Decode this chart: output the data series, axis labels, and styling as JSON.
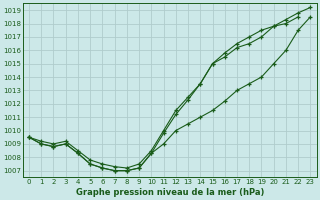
{
  "title": "Graphe pression niveau de la mer (hPa)",
  "background_color": "#cce8e8",
  "grid_color": "#b0cccc",
  "line_color": "#1a5c1a",
  "ylim_min": 1006.5,
  "ylim_max": 1019.5,
  "xlim_min": -0.5,
  "xlim_max": 23.5,
  "yticks": [
    1007,
    1008,
    1009,
    1010,
    1011,
    1012,
    1013,
    1014,
    1015,
    1016,
    1017,
    1018,
    1019
  ],
  "xticks": [
    0,
    1,
    2,
    3,
    4,
    5,
    6,
    7,
    8,
    9,
    10,
    11,
    12,
    13,
    14,
    15,
    16,
    17,
    18,
    19,
    20,
    21,
    22,
    23
  ],
  "series": [
    {
      "x": [
        0,
        1,
        2,
        3,
        4,
        5,
        6,
        7,
        8,
        9,
        10,
        11,
        12,
        13,
        14,
        15,
        16,
        17,
        18,
        19,
        20,
        21,
        22,
        23
      ],
      "y": [
        1009.5,
        1009.0,
        1008.8,
        1009.0,
        1008.3,
        1007.5,
        1007.2,
        1007.0,
        1007.0,
        1007.2,
        1008.3,
        1009.0,
        1010.0,
        1010.5,
        1011.0,
        1011.5,
        1012.2,
        1013.0,
        1013.5,
        1014.0,
        1015.0,
        1016.0,
        1017.5,
        1018.5
      ]
    },
    {
      "x": [
        0,
        1,
        2,
        3,
        4,
        5,
        6,
        7,
        8,
        9,
        10,
        11,
        12,
        13,
        14,
        15,
        16,
        17,
        18,
        19,
        20,
        21,
        22
      ],
      "y": [
        1009.5,
        1009.0,
        1008.8,
        1009.0,
        1008.3,
        1007.5,
        1007.2,
        1007.0,
        1007.0,
        1007.2,
        1008.3,
        1009.8,
        1011.2,
        1012.3,
        1013.5,
        1015.0,
        1015.5,
        1016.2,
        1016.5,
        1017.0,
        1017.8,
        1018.0,
        1018.5
      ]
    },
    {
      "x": [
        0,
        1,
        2,
        3,
        4,
        5,
        6,
        7,
        8,
        9,
        10,
        11,
        12,
        13,
        14,
        15,
        16,
        17,
        18,
        19,
        20,
        21,
        22,
        23
      ],
      "y": [
        1009.5,
        1009.2,
        1009.0,
        1009.2,
        1008.5,
        1007.8,
        1007.5,
        1007.3,
        1007.2,
        1007.5,
        1008.5,
        1010.0,
        1011.5,
        1012.5,
        1013.5,
        1015.0,
        1015.8,
        1016.5,
        1017.0,
        1017.5,
        1017.8,
        1018.3,
        1018.8,
        1019.2
      ]
    }
  ],
  "title_fontsize": 6.0,
  "tick_fontsize": 5.0
}
